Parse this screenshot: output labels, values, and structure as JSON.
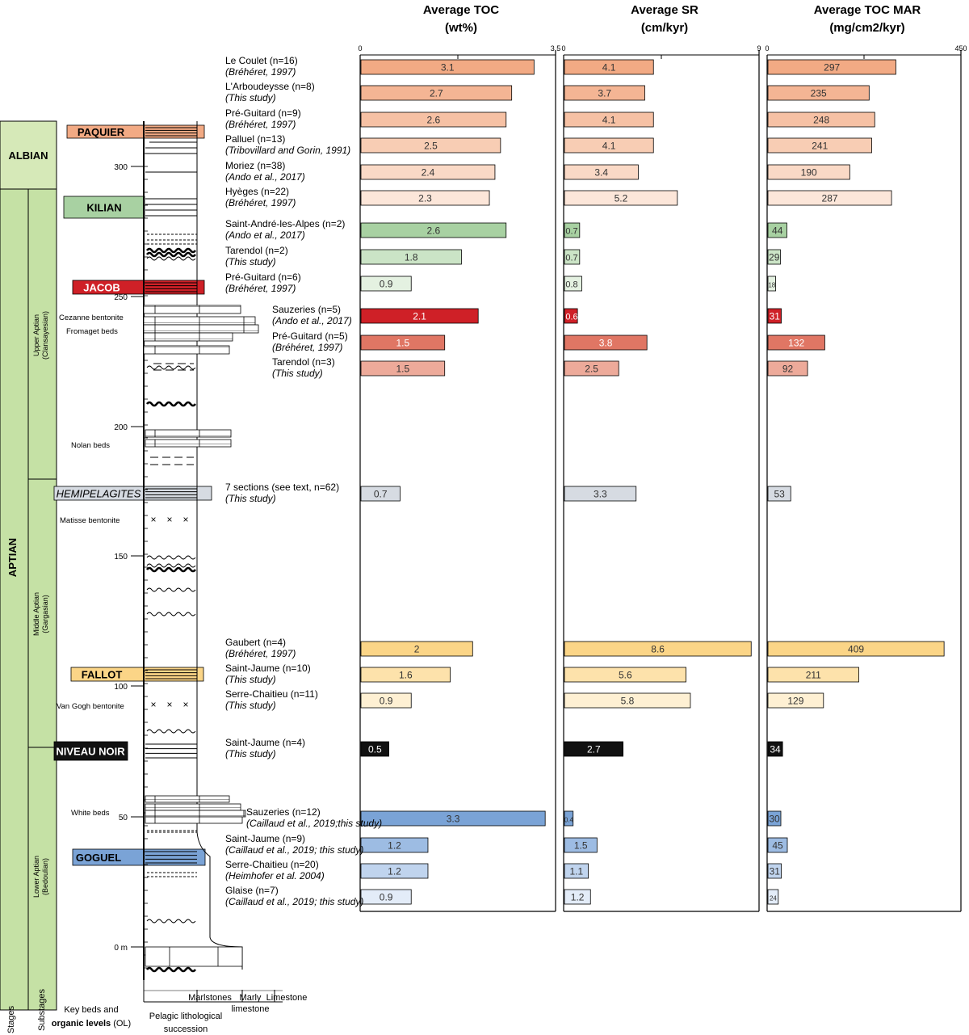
{
  "panel_titles": [
    {
      "line1": "Average TOC",
      "line2": "(wt%)"
    },
    {
      "line1": "Average SR",
      "line2": "(cm/kyr)"
    },
    {
      "line1": "Average TOC MAR",
      "line2": "(mg/cm2/kyr)"
    }
  ],
  "stages": [
    "ALBIAN",
    "APTIAN"
  ],
  "substages": [
    "Upper Aptian\n(Clansayesian)",
    "Middle Aptian\n(Gargasian)",
    "Lower Aptian\n(Bedoulian)"
  ],
  "organic_levels": [
    {
      "label": "PAQUIER",
      "color": "#f2aa84",
      "text_color": "#000",
      "italic": false
    },
    {
      "label": "KILIAN",
      "color": "#a8d1a2",
      "text_color": "#000",
      "italic": false
    },
    {
      "label": "JACOB",
      "color": "#cf2027",
      "text_color": "#fff",
      "italic": false
    },
    {
      "label": "HEMIPELAGITES",
      "color": "#d6dbe2",
      "text_color": "#000",
      "italic": true
    },
    {
      "label": "FALLOT",
      "color": "#fbd587",
      "text_color": "#000",
      "italic": false
    },
    {
      "label": "NIVEAU NOIR",
      "color": "#111111",
      "text_color": "#fff",
      "italic": false
    },
    {
      "label": "GOGUEL",
      "color": "#7aa3d6",
      "text_color": "#000",
      "italic": false
    }
  ],
  "key_beds": [
    "Cezanne bentonite",
    "Fromaget beds",
    "Nolan beds",
    "Matisse bentonite",
    "Van Gogh bentonite",
    "White beds"
  ],
  "depth_ticks": [
    "300",
    "250",
    "200",
    "150",
    "100",
    "50",
    "0 m"
  ],
  "footer": {
    "stages": "Stages",
    "substages": "Substages",
    "key_beds_line1": "Key beds and",
    "key_beds_line2_bold": "organic levels",
    "key_beds_line2_rest": " (OL)",
    "lith_line1": "Pelagic lithological",
    "lith_line2": "succession",
    "marlstones": "Marlstones",
    "marly": "Marly",
    "limestone_under": "limestone",
    "limestone": "Limestone"
  },
  "chart_data": {
    "type": "bar",
    "orientation": "horizontal",
    "axes": [
      {
        "title": "Average TOC (wt%)",
        "range": [
          0,
          3.5
        ],
        "ticks": [
          "0",
          "3.5"
        ]
      },
      {
        "title": "Average SR (cm/kyr)",
        "range": [
          0,
          9
        ],
        "ticks": [
          "0",
          "9"
        ]
      },
      {
        "title": "Average TOC MAR (mg/cm2/kyr)",
        "range": [
          0,
          450
        ],
        "ticks": [
          "0",
          "450"
        ]
      }
    ],
    "rows": [
      {
        "name": "Le Coulet (n=16)",
        "ref": "(Bréhéret, 1997)",
        "level": "PAQUIER",
        "color": "#f2aa84",
        "toc": 3.1,
        "toc_label": "3.1",
        "sr": 4.1,
        "sr_label": "4.1",
        "mar": 297,
        "mar_label": "297"
      },
      {
        "name": "L'Arboudeysse (n=8)",
        "ref": "(This study)",
        "level": "PAQUIER",
        "color": "#f4b594",
        "toc": 2.7,
        "toc_label": "2.7",
        "sr": 3.7,
        "sr_label": "3.7",
        "mar": 235,
        "mar_label": "235"
      },
      {
        "name": "Pré-Guitard (n=9)",
        "ref": "(Bréhéret, 1997)",
        "level": "PAQUIER",
        "color": "#f6c1a4",
        "toc": 2.6,
        "toc_label": "2.6",
        "sr": 4.1,
        "sr_label": "4.1",
        "mar": 248,
        "mar_label": "248"
      },
      {
        "name": "Palluel (n=13)",
        "ref": "(Tribovillard and Gorin, 1991)",
        "level": "PAQUIER",
        "color": "#f8cdb4",
        "toc": 2.5,
        "toc_label": "2.5",
        "sr": 4.1,
        "sr_label": "4.1",
        "mar": 241,
        "mar_label": "241"
      },
      {
        "name": "Moriez (n=38)",
        "ref": "(Ando et al., 2017)",
        "level": "PAQUIER",
        "color": "#fad9c6",
        "toc": 2.4,
        "toc_label": "2.4",
        "sr": 3.4,
        "sr_label": "3.4",
        "mar": 190,
        "mar_label": "190"
      },
      {
        "name": "Hyèges (n=22)",
        "ref": "(Bréhéret, 1997)",
        "level": "PAQUIER",
        "color": "#fce6d9",
        "toc": 2.3,
        "toc_label": "2.3",
        "sr": 5.2,
        "sr_label": "5.2",
        "mar": 287,
        "mar_label": "287"
      },
      {
        "name": "Saint-André-les-Alpes (n=2)",
        "ref": "(Ando et al., 2017)",
        "level": "KILIAN",
        "color": "#a8d1a2",
        "toc": 2.6,
        "toc_label": "2.6",
        "sr": 0.7,
        "sr_label": "0.7",
        "mar": 44,
        "mar_label": "44"
      },
      {
        "name": "Tarendol (n=2)",
        "ref": "(This study)",
        "level": "KILIAN",
        "color": "#cbe4c6",
        "toc": 1.8,
        "toc_label": "1.8",
        "sr": 0.7,
        "sr_label": "0.7",
        "mar": 29,
        "mar_label": "29"
      },
      {
        "name": "Pré-Guitard (n=6)",
        "ref": "(Bréhéret, 1997)",
        "level": "KILIAN",
        "color": "#e4f1e1",
        "toc": 0.9,
        "toc_label": "0.9",
        "sr": 0.8,
        "sr_label": "0.8",
        "mar": 18,
        "mar_label": "18"
      },
      {
        "name": "Sauzeries (n=5)",
        "ref": "(Ando et al., 2017)",
        "level": "JACOB",
        "color": "#cf2027",
        "toc": 2.1,
        "toc_label": "2.1",
        "sr": 0.6,
        "sr_label": "0.6",
        "mar": 31,
        "mar_label": "31"
      },
      {
        "name": "Pré-Guitard (n=5)",
        "ref": "(Bréhéret, 1997)",
        "level": "JACOB",
        "color": "#e07664",
        "toc": 1.5,
        "toc_label": "1.5",
        "sr": 3.8,
        "sr_label": "3.8",
        "mar": 132,
        "mar_label": "132"
      },
      {
        "name": "Tarendol (n=3)",
        "ref": "(This study)",
        "level": "JACOB",
        "color": "#edaa9a",
        "toc": 1.5,
        "toc_label": "1.5",
        "sr": 2.5,
        "sr_label": "2.5",
        "mar": 92,
        "mar_label": "92"
      },
      {
        "name": "7 sections (see text, n=62)",
        "ref": "(This study)",
        "level": "HEMIPELAGITES",
        "color": "#d6dbe2",
        "toc": 0.7,
        "toc_label": "0.7",
        "sr": 3.3,
        "sr_label": "3.3",
        "mar": 53,
        "mar_label": "53"
      },
      {
        "name": "Gaubert (n=4)",
        "ref": "(Bréhéret, 1997)",
        "level": "FALLOT",
        "color": "#fbd587",
        "toc": 2.0,
        "toc_label": "2",
        "sr": 8.6,
        "sr_label": "8.6",
        "mar": 409,
        "mar_label": "409"
      },
      {
        "name": "Saint-Jaume (n=10)",
        "ref": "(This study)",
        "level": "FALLOT",
        "color": "#fde2ab",
        "toc": 1.6,
        "toc_label": "1.6",
        "sr": 5.6,
        "sr_label": "5.6",
        "mar": 211,
        "mar_label": "211"
      },
      {
        "name": "Serre-Chaitieu (n=11)",
        "ref": "(This study)",
        "level": "FALLOT",
        "color": "#fef0d3",
        "toc": 0.9,
        "toc_label": "0.9",
        "sr": 5.8,
        "sr_label": "5.8",
        "mar": 129,
        "mar_label": "129"
      },
      {
        "name": "Saint-Jaume (n=4)",
        "ref": "(This study)",
        "level": "NIVEAU NOIR",
        "color": "#111111",
        "toc": 0.5,
        "toc_label": "0.5",
        "sr": 2.7,
        "sr_label": "2.7",
        "mar": 34,
        "mar_label": "34"
      },
      {
        "name": "Sauzeries (n=12)",
        "ref": "(Caillaud et al., 2019;this study)",
        "level": "GOGUEL",
        "color": "#7aa3d6",
        "toc": 3.3,
        "toc_label": "3.3",
        "sr": 0.4,
        "sr_label": "0.4",
        "mar": 30,
        "mar_label": "30"
      },
      {
        "name": "Saint-Jaume (n=9)",
        "ref": "(Caillaud et al., 2019; this study)",
        "level": "GOGUEL",
        "color": "#9dbce3",
        "toc": 1.2,
        "toc_label": "1.2",
        "sr": 1.5,
        "sr_label": "1.5",
        "mar": 45,
        "mar_label": "45"
      },
      {
        "name": "Serre-Chaitieu (n=20)",
        "ref": "(Heimhofer et al. 2004)",
        "level": "GOGUEL",
        "color": "#c0d4ee",
        "toc": 1.2,
        "toc_label": "1.2",
        "sr": 1.1,
        "sr_label": "1.1",
        "mar": 31,
        "mar_label": "31"
      },
      {
        "name": "Glaise (n=7)",
        "ref": "(Caillaud et al., 2019; this study)",
        "level": "GOGUEL",
        "color": "#e3ecf8",
        "toc": 0.9,
        "toc_label": "0.9",
        "sr": 1.2,
        "sr_label": "1.2",
        "mar": 24,
        "mar_label": "24"
      }
    ]
  }
}
